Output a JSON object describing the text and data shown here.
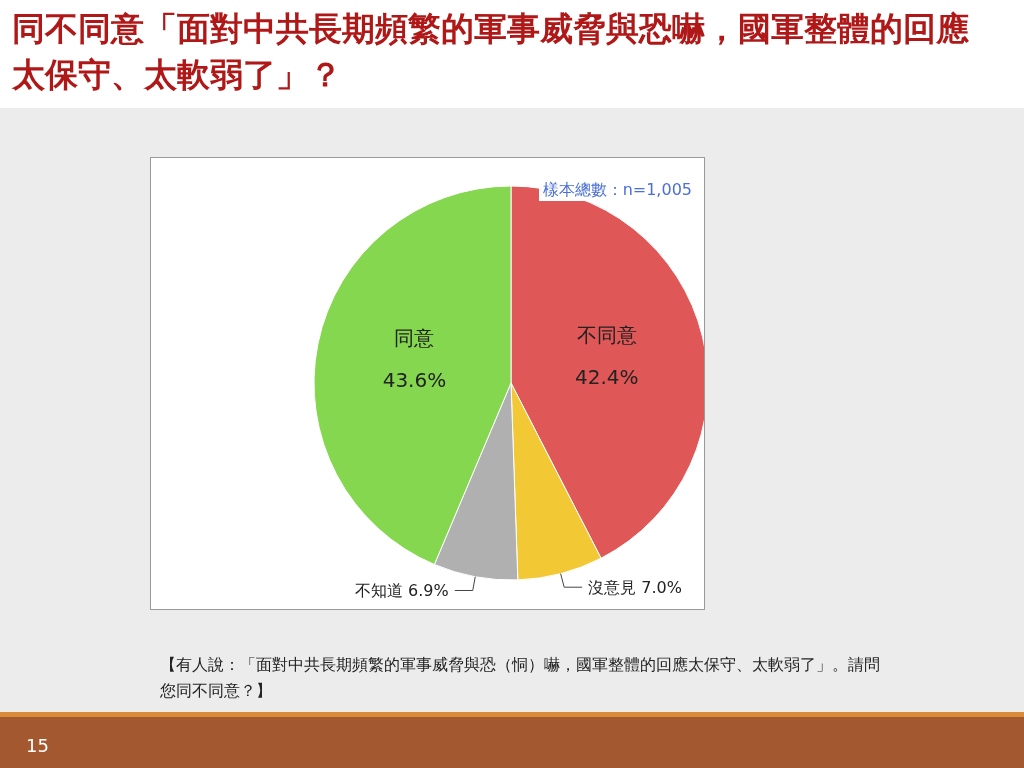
{
  "chart_data": {
    "type": "pie",
    "title": "同不同意「面對中共長期頻繁的軍事威脅與恐嚇，國軍整體的回應太保守、太軟弱了」？",
    "categories": [
      "不同意",
      "沒意見",
      "不知道",
      "同意"
    ],
    "values": [
      42.4,
      7.0,
      6.9,
      43.6
    ],
    "value_labels": [
      "42.4%",
      "7.0%",
      "6.9%",
      "43.6%"
    ],
    "colors": [
      "#e05757",
      "#f2c934",
      "#b0b0b0",
      "#84d74e"
    ],
    "annotations": [
      "樣本總數：n=1,005",
      "【有人說：「面對中共長期頻繁的軍事威脅與恐（恫）嚇，國軍整體的回應太保守、太軟弱了」。請問您同不同意？】",
      "15"
    ]
  }
}
